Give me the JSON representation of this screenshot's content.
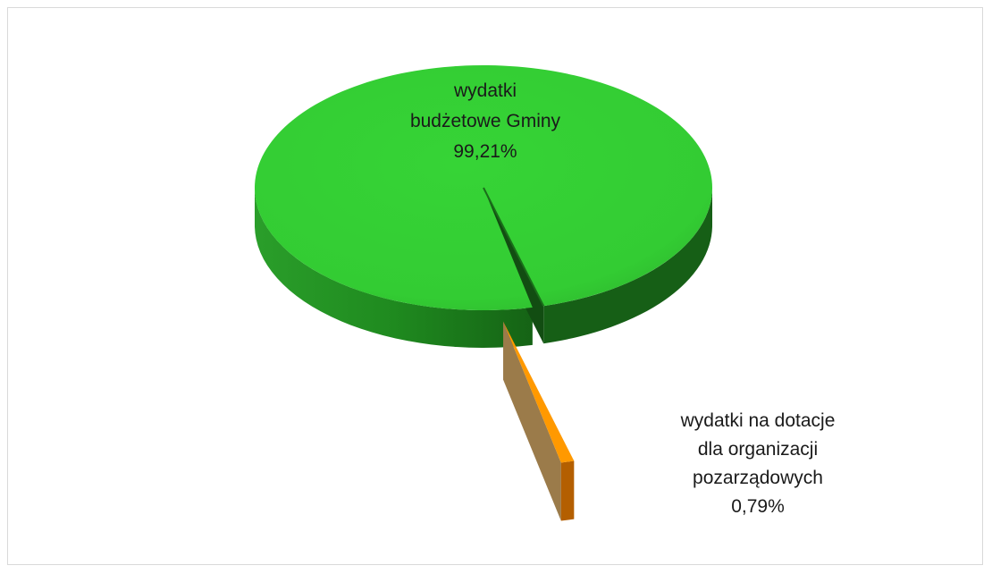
{
  "chart_data": {
    "type": "pie",
    "style": "3d-exploded",
    "slices": [
      {
        "label_lines": [
          "wydatki",
          "budżetowe Gminy"
        ],
        "value_text": "99,21%",
        "value": 99.21,
        "color": "#33cc33",
        "side_color": "#1f8a1f"
      },
      {
        "label_lines": [
          "wydatki na dotacje",
          "dla organizacji",
          "pozarządowych"
        ],
        "value_text": "0,79%",
        "value": 0.79,
        "color": "#ff9900",
        "side_color": "#9b7b4a"
      }
    ]
  }
}
